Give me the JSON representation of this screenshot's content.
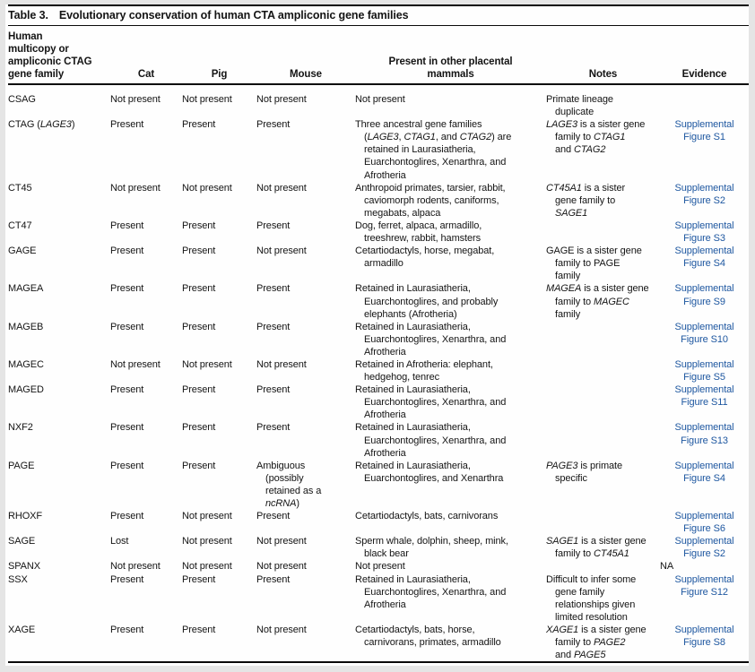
{
  "colors": {
    "link_blue": "#1e57a0",
    "text": "#141414",
    "rule": "#0a0a0a",
    "outer_background": "#e5e5e5",
    "panel_background": "#fefefe"
  },
  "title": {
    "label": "Table 3.",
    "caption": "Evolutionary conservation of human CTA ampliconic gene families"
  },
  "header": {
    "columns": [
      {
        "id": "gene_family",
        "label": "Human\nmulticopy or\nampliconic CTAG\ngene family"
      },
      {
        "id": "cat",
        "label": "Cat"
      },
      {
        "id": "pig",
        "label": "Pig"
      },
      {
        "id": "mouse",
        "label": "Mouse"
      },
      {
        "id": "mammals",
        "label": "Present in other placental\nmammals"
      },
      {
        "id": "notes",
        "label": "Notes"
      },
      {
        "id": "evidence",
        "label": "Evidence"
      }
    ]
  },
  "rows": [
    {
      "gene_family": "CSAG",
      "cat": "Not present",
      "pig": "Not present",
      "mouse": "Not present",
      "mammals": "Not present",
      "notes": "Primate lineage\nduplicate",
      "evidence": "",
      "evidence_is_link": false
    },
    {
      "gene_family": "CTAG (*LAGE3*)",
      "cat": "Present",
      "pig": "Present",
      "mouse": "Present",
      "mammals": "Three ancestral gene families\n(*LAGE3*, *CTAG1*, and *CTAG2*) are\nretained in Laurasiatheria,\nEuarchontoglires, Xenarthra, and\nAfrotheria",
      "notes": "*LAGE3* is a sister gene\nfamily to *CTAG1*\nand *CTAG2*",
      "evidence": "Supplemental\nFigure S1",
      "evidence_is_link": true
    },
    {
      "gene_family": "CT45",
      "cat": "Not present",
      "pig": "Not present",
      "mouse": "Not present",
      "mammals": "Anthropoid primates, tarsier, rabbit,\ncaviomorph rodents, caniforms,\nmegabats, alpaca",
      "notes": "*CT45A1* is a sister\ngene family to\n*SAGE1*",
      "evidence": "Supplemental\nFigure S2",
      "evidence_is_link": true
    },
    {
      "gene_family": "CT47",
      "cat": "Present",
      "pig": "Present",
      "mouse": "Present",
      "mammals": "Dog, ferret, alpaca, armadillo,\ntreeshrew, rabbit, hamsters",
      "notes": "",
      "evidence": "Supplemental\nFigure S3",
      "evidence_is_link": true
    },
    {
      "gene_family": "GAGE",
      "cat": "Present",
      "pig": "Present",
      "mouse": "Not present",
      "mammals": "Cetartiodactyls, horse, megabat,\narmadillo",
      "notes": "GAGE is a sister gene\nfamily to PAGE\nfamily",
      "evidence": "Supplemental\nFigure S4",
      "evidence_is_link": true
    },
    {
      "gene_family": "MAGEA",
      "cat": "Present",
      "pig": "Present",
      "mouse": "Present",
      "mammals": "Retained in Laurasiatheria,\nEuarchontoglires, and probably\nelephants (Afrotheria)",
      "notes": "*MAGEA* is a sister gene\nfamily to *MAGEC*\nfamily",
      "evidence": "Supplemental\nFigure S9",
      "evidence_is_link": true
    },
    {
      "gene_family": "MAGEB",
      "cat": "Present",
      "pig": "Present",
      "mouse": "Present",
      "mammals": "Retained in Laurasiatheria,\nEuarchontoglires, Xenarthra, and\nAfrotheria",
      "notes": "",
      "evidence": "Supplemental\nFigure S10",
      "evidence_is_link": true
    },
    {
      "gene_family": "MAGEC",
      "cat": "Not present",
      "pig": "Not present",
      "mouse": "Not present",
      "mammals": "Retained in Afrotheria: elephant,\nhedgehog, tenrec",
      "notes": "",
      "evidence": "Supplemental\nFigure S5",
      "evidence_is_link": true
    },
    {
      "gene_family": "MAGED",
      "cat": "Present",
      "pig": "Present",
      "mouse": "Present",
      "mammals": "Retained in Laurasiatheria,\nEuarchontoglires, Xenarthra, and\nAfrotheria",
      "notes": "",
      "evidence": "Supplemental\nFigure S11",
      "evidence_is_link": true
    },
    {
      "gene_family": "NXF2",
      "cat": "Present",
      "pig": "Present",
      "mouse": "Present",
      "mammals": "Retained in Laurasiatheria,\nEuarchontoglires, Xenarthra, and\nAfrotheria",
      "notes": "",
      "evidence": "Supplemental\nFigure S13",
      "evidence_is_link": true
    },
    {
      "gene_family": "PAGE",
      "cat": "Present",
      "pig": "Present",
      "mouse": "Ambiguous\n(possibly\nretained as a\n*ncRNA*)",
      "mammals": "Retained in Laurasiatheria,\nEuarchontoglires, and Xenarthra",
      "notes": "*PAGE3* is primate\nspecific",
      "evidence": "Supplemental\nFigure S4",
      "evidence_is_link": true
    },
    {
      "gene_family": "RHOXF",
      "cat": "Present",
      "pig": "Not present",
      "mouse": "Present",
      "mammals": "Cetartiodactyls, bats, carnivorans",
      "notes": "",
      "evidence": "Supplemental\nFigure S6",
      "evidence_is_link": true
    },
    {
      "gene_family": "SAGE",
      "cat": "Lost",
      "pig": "Not present",
      "mouse": "Not present",
      "mammals": "Sperm whale, dolphin, sheep, mink,\nblack bear",
      "notes": "*SAGE1* is a sister gene\nfamily to *CT45A1*",
      "evidence": "Supplemental\nFigure S2",
      "evidence_is_link": true
    },
    {
      "gene_family": "SPANX",
      "cat": "Not present",
      "pig": "Not present",
      "mouse": "Not present",
      "mammals": "Not present",
      "notes": "",
      "evidence": "NA",
      "evidence_is_link": false
    },
    {
      "gene_family": "SSX",
      "cat": "Present",
      "pig": "Present",
      "mouse": "Present",
      "mammals": "Retained in Laurasiatheria,\nEuarchontoglires, Xenarthra, and\nAfrotheria",
      "notes": "Difficult to infer some\ngene family\nrelationships given\nlimited resolution",
      "evidence": "Supplemental\nFigure S12",
      "evidence_is_link": true
    },
    {
      "gene_family": "XAGE",
      "cat": "Present",
      "pig": "Present",
      "mouse": "Not present",
      "mammals": "Cetartiodactyls, bats, horse,\ncarnivorans, primates, armadillo",
      "notes": "*XAGE1* is a sister gene\nfamily to *PAGE2*\nand *PAGE5*",
      "evidence": "Supplemental\nFigure S8",
      "evidence_is_link": true
    }
  ]
}
